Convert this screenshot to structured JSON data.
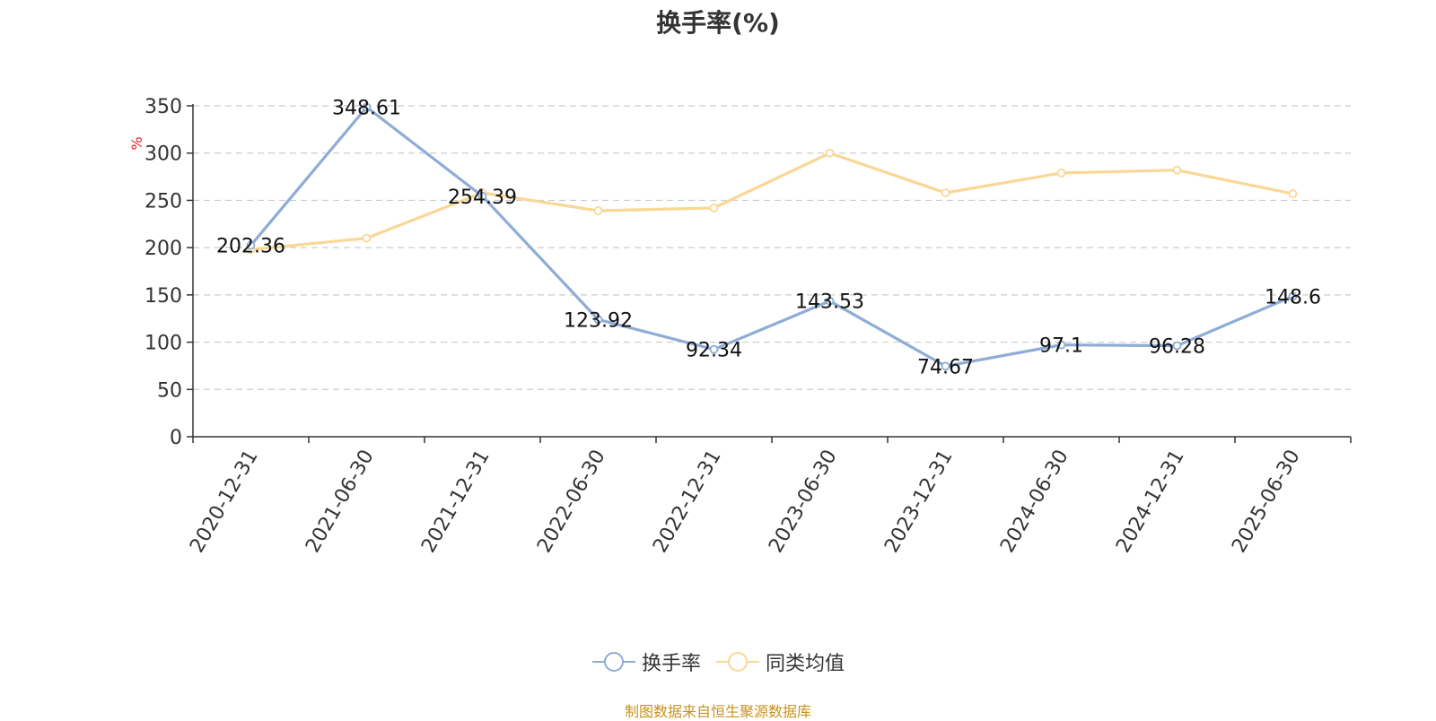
{
  "chart_data": {
    "type": "line",
    "title": "换手率(%)",
    "ylabel": "%",
    "ylim": [
      0,
      350
    ],
    "yticks": [
      0,
      50,
      100,
      150,
      200,
      250,
      300,
      350
    ],
    "grid": true,
    "legend_position": "bottom",
    "categories": [
      "2020-12-31",
      "2021-06-30",
      "2021-12-31",
      "2022-06-30",
      "2022-12-31",
      "2023-06-30",
      "2023-12-31",
      "2024-06-30",
      "2024-12-31",
      "2025-06-30"
    ],
    "series": [
      {
        "name": "换手率",
        "color": "#8eacd5",
        "values": [
          202.36,
          348.61,
          254.39,
          123.92,
          92.34,
          143.53,
          74.67,
          97.1,
          96.28,
          148.6
        ],
        "labels": [
          "202.36",
          "348.61",
          "254.39",
          "123.92",
          "92.34",
          "143.53",
          "74.67",
          "97.1",
          "96.28",
          "148.6"
        ]
      },
      {
        "name": "同类均值",
        "color": "#fad795",
        "values": [
          198,
          210,
          258,
          239,
          242,
          300,
          258,
          279,
          282,
          257
        ]
      }
    ]
  },
  "footer": {
    "source": "制图数据来自恒生聚源数据库"
  }
}
